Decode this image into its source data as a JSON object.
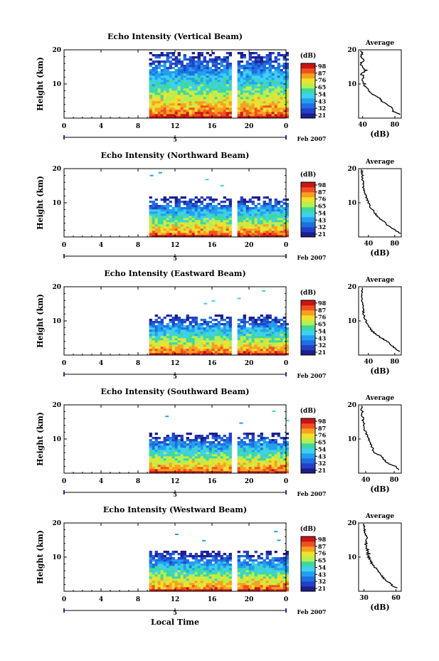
{
  "figure": {
    "xlabel": "Local Time",
    "ylabel": "Height (km)",
    "date_label": "Feb 2007",
    "day_label": "5",
    "cbar_unit": "(dB)",
    "avg_title": "Average",
    "avg_xlabel": "(dB)"
  },
  "colors": {
    "scale": [
      "#1d1d8c",
      "#2340c8",
      "#1e6fe0",
      "#22a0f0",
      "#3fd0f0",
      "#3ed7a0",
      "#b4f050",
      "#f0e030",
      "#f7a020",
      "#f05020",
      "#c81414"
    ]
  },
  "chart_data": [
    {
      "type": "heatmap",
      "title": "Echo Intensity (Vertical Beam)",
      "xlabel": "",
      "ylabel": "Height (km)",
      "xlim": [
        0,
        24
      ],
      "ylim": [
        0,
        20
      ],
      "xticks": [
        "0",
        "4",
        "8",
        "12",
        "16",
        "20",
        "0"
      ],
      "yticks": [
        "10",
        "20"
      ],
      "data_start_hour": 9.2,
      "data_end_hour": 24,
      "gap_hour": 18.3,
      "data_top_km": 19.5,
      "colorbar_ticks": [
        "98",
        "87",
        "76",
        "65",
        "54",
        "43",
        "32",
        "21"
      ],
      "average": {
        "title": "Average",
        "xlabel": "(dB)",
        "xlim": [
          35,
          88
        ],
        "xticks": [
          "40",
          "80"
        ],
        "yticks": [
          "10",
          "20"
        ],
        "heights_km": [
          1,
          2,
          3,
          4,
          5,
          6,
          7,
          8,
          9,
          10,
          11,
          12,
          13,
          14,
          15,
          16,
          17,
          18,
          19,
          20
        ],
        "values_db": [
          86,
          78,
          76,
          70,
          64,
          60,
          52,
          48,
          44,
          42,
          40,
          42,
          38,
          44,
          40,
          38,
          42,
          38,
          40,
          37
        ]
      }
    },
    {
      "type": "heatmap",
      "title": "Echo Intensity (Northward Beam)",
      "xlabel": "",
      "ylabel": "Height (km)",
      "xlim": [
        0,
        24
      ],
      "ylim": [
        0,
        20
      ],
      "xticks": [
        "0",
        "4",
        "8",
        "12",
        "16",
        "20",
        "0"
      ],
      "yticks": [
        "10",
        "20"
      ],
      "data_start_hour": 9.2,
      "data_end_hour": 24,
      "gap_hour": 18.3,
      "data_top_km": 12,
      "colorbar_ticks": [
        "98",
        "87",
        "76",
        "65",
        "54",
        "43",
        "32",
        "21"
      ],
      "average": {
        "title": "Average",
        "xlabel": "(dB)",
        "xlim": [
          25,
          90
        ],
        "xticks": [
          "40",
          "80"
        ],
        "yticks": [
          "10",
          "20"
        ],
        "heights_km": [
          1,
          2,
          3,
          4,
          5,
          6,
          7,
          8,
          9,
          10,
          11,
          12,
          13,
          14,
          15,
          16,
          17,
          18,
          19,
          20
        ],
        "values_db": [
          88,
          80,
          72,
          66,
          60,
          54,
          50,
          46,
          42,
          40,
          38,
          36,
          34,
          33,
          32,
          32,
          31,
          31,
          30,
          30
        ]
      }
    },
    {
      "type": "heatmap",
      "title": "Echo Intensity (Eastward Beam)",
      "xlabel": "",
      "ylabel": "Height (km)",
      "xlim": [
        0,
        24
      ],
      "ylim": [
        0,
        20
      ],
      "xticks": [
        "0",
        "4",
        "8",
        "12",
        "16",
        "20",
        "0"
      ],
      "yticks": [
        "10",
        "20"
      ],
      "data_start_hour": 9.2,
      "data_end_hour": 24,
      "gap_hour": 18.3,
      "data_top_km": 12,
      "colorbar_ticks": [
        "98",
        "87",
        "76",
        "65",
        "54",
        "43",
        "32",
        "21"
      ],
      "average": {
        "title": "Average",
        "xlabel": "(dB)",
        "xlim": [
          25,
          90
        ],
        "xticks": [
          "40",
          "80"
        ],
        "yticks": [
          "10",
          "20"
        ],
        "heights_km": [
          1,
          2,
          3,
          4,
          5,
          6,
          7,
          8,
          9,
          10,
          11,
          12,
          13,
          14,
          15,
          16,
          17,
          18,
          19,
          20
        ],
        "values_db": [
          88,
          80,
          74,
          68,
          60,
          52,
          46,
          42,
          38,
          36,
          34,
          33,
          32,
          31,
          31,
          30,
          30,
          30,
          30,
          29
        ]
      }
    },
    {
      "type": "heatmap",
      "title": "Echo Intensity (Southward Beam)",
      "xlabel": "",
      "ylabel": "Height (km)",
      "xlim": [
        0,
        24
      ],
      "ylim": [
        0,
        20
      ],
      "xticks": [
        "0",
        "4",
        "8",
        "12",
        "16",
        "20",
        "0"
      ],
      "yticks": [
        "10",
        "20"
      ],
      "data_start_hour": 9.2,
      "data_end_hour": 24,
      "gap_hour": 18.3,
      "data_top_km": 12,
      "colorbar_ticks": [
        "98",
        "87",
        "76",
        "65",
        "54",
        "43",
        "32",
        "21"
      ],
      "average": {
        "title": "Average",
        "xlabel": "(dB)",
        "xlim": [
          30,
          90
        ],
        "xticks": [
          "40",
          "80"
        ],
        "yticks": [
          "10",
          "20"
        ],
        "heights_km": [
          1,
          2,
          3,
          4,
          5,
          6,
          7,
          8,
          9,
          10,
          11,
          12,
          13,
          14,
          15,
          16,
          17,
          18,
          19,
          20
        ],
        "values_db": [
          86,
          82,
          70,
          66,
          62,
          52,
          50,
          48,
          46,
          44,
          42,
          40,
          38,
          38,
          36,
          36,
          35,
          35,
          34,
          34
        ]
      }
    },
    {
      "type": "heatmap",
      "title": "Echo Intensity (Westward Beam)",
      "xlabel": "Local Time",
      "ylabel": "Height (km)",
      "xlim": [
        0,
        24
      ],
      "ylim": [
        0,
        20
      ],
      "xticks": [
        "0",
        "4",
        "8",
        "12",
        "16",
        "20",
        "0"
      ],
      "yticks": [
        "10",
        "20"
      ],
      "data_start_hour": 9.2,
      "data_end_hour": 24,
      "gap_hour": 18.3,
      "data_top_km": 12,
      "colorbar_ticks": [
        "98",
        "87",
        "76",
        "65",
        "54",
        "43",
        "32",
        "21"
      ],
      "average": {
        "title": "Average",
        "xlabel": "(dB)",
        "xlim": [
          25,
          65
        ],
        "xticks": [
          "30",
          "60"
        ],
        "yticks": [
          "10",
          "20"
        ],
        "heights_km": [
          1,
          2,
          3,
          4,
          5,
          6,
          7,
          8,
          9,
          10,
          11,
          12,
          13,
          14,
          15,
          16,
          17,
          18,
          19,
          20
        ],
        "values_db": [
          60,
          56,
          52,
          48,
          46,
          44,
          40,
          38,
          36,
          34,
          34,
          33,
          33,
          32,
          32,
          32,
          31,
          31,
          31,
          30
        ]
      }
    }
  ]
}
